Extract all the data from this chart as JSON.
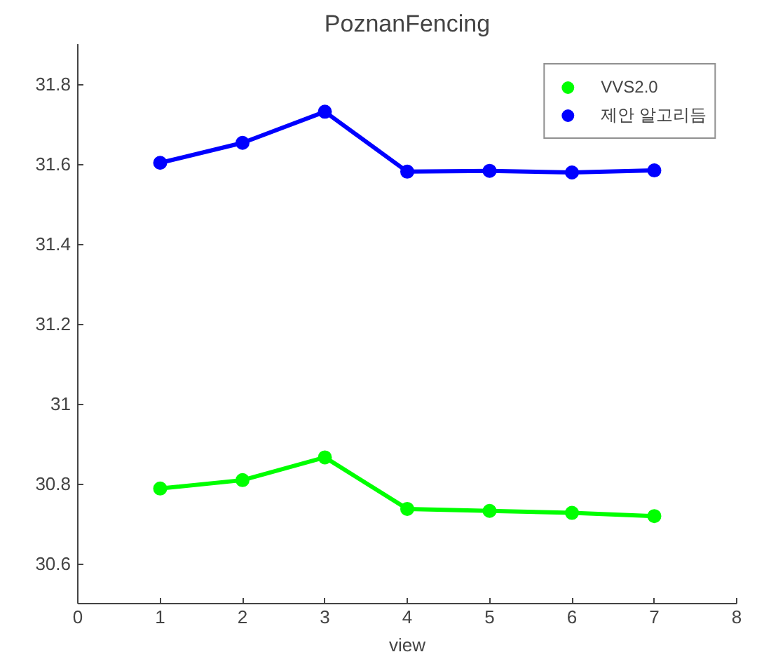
{
  "chart_data": {
    "type": "line",
    "title": "PoznanFencing",
    "xlabel": "view",
    "x": [
      1,
      2,
      3,
      4,
      5,
      6,
      7
    ],
    "series": [
      {
        "name": "VVS2.0",
        "color": "#00ff00",
        "values": [
          30.788,
          30.809,
          30.866,
          30.737,
          30.732,
          30.727,
          30.719
        ]
      },
      {
        "name": "제안 알고리듬",
        "color": "#0000ff",
        "values": [
          31.603,
          31.653,
          31.731,
          31.581,
          31.583,
          31.579,
          31.584
        ]
      }
    ],
    "xlim": [
      0,
      8
    ],
    "xticks": [
      0,
      1,
      2,
      3,
      4,
      5,
      6,
      7,
      8
    ],
    "ylim": [
      30.5,
      31.9
    ],
    "yticks": [
      30.6,
      30.8,
      31,
      31.2,
      31.4,
      31.6,
      31.8
    ],
    "grid": false,
    "legend": "top right",
    "marker": "circle",
    "line_style": "solid"
  }
}
